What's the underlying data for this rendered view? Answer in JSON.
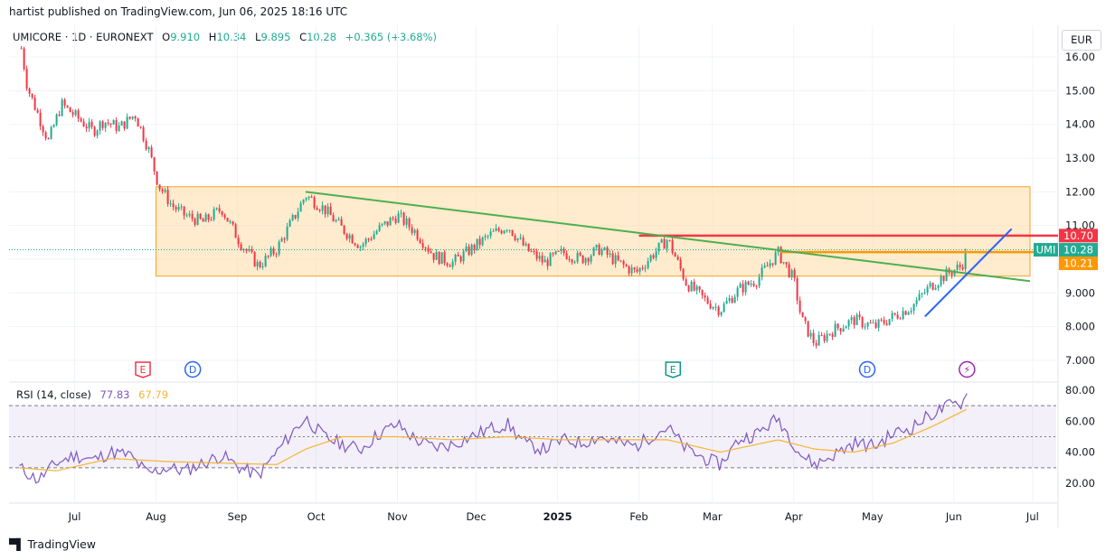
{
  "header": {
    "published": "hartist published on TradingView.com, Jun 06, 2025 18:16 UTC"
  },
  "legend": {
    "symbol": "UMICORE · 1D · EURONEXT",
    "open_label": "O",
    "open": "9.910",
    "high_label": "H",
    "high": "10.34",
    "low_label": "L",
    "low": "9.895",
    "close_label": "C",
    "close": "10.28",
    "change": "+0.365 (+3.68%)"
  },
  "currency": "EUR",
  "rsi_legend": {
    "label": "RSI (14, close)",
    "rsi": "77.83",
    "ma": "67.79"
  },
  "footer": {
    "brand": "TradingView"
  },
  "colors": {
    "up": "#22ab94",
    "down": "#f23645",
    "zone_fill": "#ffe0b2",
    "zone_border": "#f5a623",
    "green_line": "#4caf50",
    "blue_line": "#2962ff",
    "red_line": "#f23645",
    "orange_line": "#ff9800",
    "rsi_line": "#7e57c2",
    "rsi_ma": "#f7b430"
  },
  "chart_data": [
    {
      "type": "candlestick",
      "price_axis": {
        "ticks": [
          "16.00",
          "15.00",
          "14.00",
          "13.00",
          "12.00",
          "11.00",
          "10.00",
          "9.000",
          "8.000",
          "7.000"
        ],
        "range": [
          6.6,
          16.6
        ]
      },
      "time_axis": [
        "Jul",
        "Aug",
        "Sep",
        "Oct",
        "Nov",
        "Dec",
        "2025",
        "Feb",
        "Mar",
        "Apr",
        "May",
        "Jun",
        "Jul"
      ],
      "close_path": [
        [
          "2024-06-10",
          16.6
        ],
        [
          "2024-06-13",
          15.1
        ],
        [
          "2024-06-17",
          14.3
        ],
        [
          "2024-06-21",
          13.5
        ],
        [
          "2024-06-26",
          14.6
        ],
        [
          "2024-07-02",
          14.2
        ],
        [
          "2024-07-08",
          13.8
        ],
        [
          "2024-07-12",
          14.1
        ],
        [
          "2024-07-18",
          13.9
        ],
        [
          "2024-07-24",
          14.3
        ],
        [
          "2024-07-29",
          13.3
        ],
        [
          "2024-08-02",
          12.2
        ],
        [
          "2024-08-07",
          11.6
        ],
        [
          "2024-08-12",
          11.3
        ],
        [
          "2024-08-19",
          11.1
        ],
        [
          "2024-08-26",
          11.5
        ],
        [
          "2024-09-02",
          10.5
        ],
        [
          "2024-09-09",
          9.8
        ],
        [
          "2024-09-16",
          10.3
        ],
        [
          "2024-09-23",
          11.3
        ],
        [
          "2024-09-27",
          11.9
        ],
        [
          "2024-10-04",
          11.5
        ],
        [
          "2024-10-11",
          10.9
        ],
        [
          "2024-10-18",
          10.4
        ],
        [
          "2024-10-25",
          10.9
        ],
        [
          "2024-11-01",
          11.3
        ],
        [
          "2024-11-08",
          10.8
        ],
        [
          "2024-11-15",
          10.1
        ],
        [
          "2024-11-22",
          9.9
        ],
        [
          "2024-11-29",
          10.3
        ],
        [
          "2024-12-06",
          10.7
        ],
        [
          "2024-12-13",
          11.0
        ],
        [
          "2024-12-20",
          10.3
        ],
        [
          "2024-12-27",
          9.9
        ],
        [
          "2025-01-03",
          10.2
        ],
        [
          "2025-01-10",
          10.0
        ],
        [
          "2025-01-17",
          10.3
        ],
        [
          "2025-01-24",
          9.9
        ],
        [
          "2025-01-31",
          9.6
        ],
        [
          "2025-02-07",
          10.2
        ],
        [
          "2025-02-12",
          10.6
        ],
        [
          "2025-02-19",
          9.3
        ],
        [
          "2025-02-26",
          8.8
        ],
        [
          "2025-03-04",
          8.5
        ],
        [
          "2025-03-11",
          9.1
        ],
        [
          "2025-03-18",
          9.4
        ],
        [
          "2025-03-26",
          10.2
        ],
        [
          "2025-04-01",
          9.4
        ],
        [
          "2025-04-04",
          8.2
        ],
        [
          "2025-04-09",
          7.5
        ],
        [
          "2025-04-16",
          7.9
        ],
        [
          "2025-04-24",
          8.2
        ],
        [
          "2025-05-02",
          8.0
        ],
        [
          "2025-05-09",
          8.3
        ],
        [
          "2025-05-16",
          8.6
        ],
        [
          "2025-05-23",
          9.2
        ],
        [
          "2025-05-30",
          9.6
        ],
        [
          "2025-06-04",
          9.8
        ],
        [
          "2025-06-06",
          10.28
        ]
      ],
      "zone": {
        "from": "2024-08-01",
        "to": "2025-06-30",
        "top": 12.15,
        "bottom": 9.5
      },
      "trend_lines": [
        {
          "color": "green",
          "start": [
            "2024-09-27",
            12.0
          ],
          "end": [
            "2025-06-30",
            9.35
          ]
        },
        {
          "color": "blue",
          "start": [
            "2025-05-21",
            8.3
          ],
          "end": [
            "2025-06-23",
            10.9
          ]
        }
      ],
      "levels": [
        {
          "color": "red",
          "value": 10.7,
          "from": "2025-02-01"
        },
        {
          "color": "orange",
          "value": 10.21,
          "from": "2025-03-27"
        }
      ],
      "price_tags": [
        {
          "text": "10.70",
          "value": 10.7,
          "color": "#f23645"
        },
        {
          "name": "UMI",
          "text": "10.28",
          "value": 10.28,
          "color": "#22ab94"
        },
        {
          "text": "10.21",
          "value": 10.21,
          "color": "#ff9800"
        }
      ],
      "events": [
        {
          "date": "2024-07-27",
          "letter": "E",
          "kind": "earnings"
        },
        {
          "date": "2024-08-15",
          "letter": "D",
          "kind": "dividend"
        },
        {
          "date": "2025-02-14",
          "letter": "E",
          "kind": "earnings"
        },
        {
          "date": "2025-04-29",
          "letter": "D",
          "kind": "dividend"
        },
        {
          "date": "2025-06-06",
          "letter": "⚡",
          "kind": "split"
        }
      ]
    },
    {
      "type": "line",
      "name": "RSI (14, close)",
      "y_axis": {
        "ticks": [
          "80.00",
          "60.00",
          "40.00",
          "20.00"
        ],
        "range": [
          10,
          85
        ],
        "bands": [
          70,
          50,
          30
        ]
      },
      "rsi_path": [
        [
          "2024-06-10",
          30
        ],
        [
          "2024-06-17",
          22
        ],
        [
          "2024-06-24",
          33
        ],
        [
          "2024-07-01",
          38
        ],
        [
          "2024-07-08",
          35
        ],
        [
          "2024-07-15",
          40
        ],
        [
          "2024-07-22",
          38
        ],
        [
          "2024-07-29",
          26
        ],
        [
          "2024-08-05",
          30
        ],
        [
          "2024-08-12",
          28
        ],
        [
          "2024-08-19",
          33
        ],
        [
          "2024-08-26",
          38
        ],
        [
          "2024-09-02",
          30
        ],
        [
          "2024-09-09",
          25
        ],
        [
          "2024-09-16",
          40
        ],
        [
          "2024-09-23",
          55
        ],
        [
          "2024-09-27",
          62
        ],
        [
          "2024-10-04",
          50
        ],
        [
          "2024-10-11",
          45
        ],
        [
          "2024-10-18",
          42
        ],
        [
          "2024-10-25",
          52
        ],
        [
          "2024-11-01",
          58
        ],
        [
          "2024-11-08",
          48
        ],
        [
          "2024-11-15",
          43
        ],
        [
          "2024-11-22",
          45
        ],
        [
          "2024-11-29",
          50
        ],
        [
          "2024-12-06",
          55
        ],
        [
          "2024-12-13",
          58
        ],
        [
          "2024-12-20",
          45
        ],
        [
          "2024-12-27",
          42
        ],
        [
          "2025-01-03",
          48
        ],
        [
          "2025-01-10",
          46
        ],
        [
          "2025-01-17",
          50
        ],
        [
          "2025-01-24",
          46
        ],
        [
          "2025-01-31",
          44
        ],
        [
          "2025-02-07",
          52
        ],
        [
          "2025-02-12",
          56
        ],
        [
          "2025-02-19",
          42
        ],
        [
          "2025-02-26",
          36
        ],
        [
          "2025-03-04",
          32
        ],
        [
          "2025-03-11",
          48
        ],
        [
          "2025-03-18",
          52
        ],
        [
          "2025-03-26",
          62
        ],
        [
          "2025-04-01",
          46
        ],
        [
          "2025-04-04",
          38
        ],
        [
          "2025-04-09",
          32
        ],
        [
          "2025-04-16",
          38
        ],
        [
          "2025-04-24",
          46
        ],
        [
          "2025-05-02",
          44
        ],
        [
          "2025-05-09",
          52
        ],
        [
          "2025-05-16",
          56
        ],
        [
          "2025-05-23",
          64
        ],
        [
          "2025-05-30",
          70
        ],
        [
          "2025-06-04",
          72
        ],
        [
          "2025-06-06",
          77.83
        ]
      ],
      "ma_path": [
        [
          "2024-06-10",
          30
        ],
        [
          "2024-06-24",
          28
        ],
        [
          "2024-07-15",
          36
        ],
        [
          "2024-08-05",
          34
        ],
        [
          "2024-08-26",
          33
        ],
        [
          "2024-09-16",
          32
        ],
        [
          "2024-09-27",
          42
        ],
        [
          "2024-10-11",
          50
        ],
        [
          "2024-11-01",
          50
        ],
        [
          "2024-11-22",
          48
        ],
        [
          "2024-12-13",
          50
        ],
        [
          "2025-01-03",
          48
        ],
        [
          "2025-01-24",
          48
        ],
        [
          "2025-02-12",
          48
        ],
        [
          "2025-03-04",
          40
        ],
        [
          "2025-03-26",
          48
        ],
        [
          "2025-04-09",
          42
        ],
        [
          "2025-04-24",
          40
        ],
        [
          "2025-05-09",
          46
        ],
        [
          "2025-05-23",
          56
        ],
        [
          "2025-06-06",
          67.79
        ]
      ]
    }
  ]
}
